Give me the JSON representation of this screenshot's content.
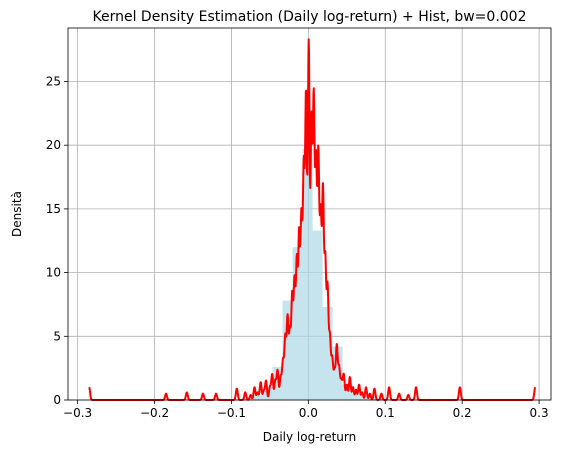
{
  "chart_data": {
    "type": "histogram+kde",
    "title": "Kernel Density Estimation (Daily log-return) + Hist, bw=0.002",
    "xlabel": "Daily log-return",
    "ylabel": "Densità",
    "xlim": [
      -0.3125,
      0.3155
    ],
    "ylim": [
      0,
      29.2
    ],
    "x_ticks": [
      -0.3,
      -0.2,
      -0.1,
      0.0,
      0.1,
      0.2,
      0.3
    ],
    "x_tick_labels": [
      "−0.3",
      "−0.2",
      "−0.1",
      "0.0",
      "0.1",
      "0.2",
      "0.3"
    ],
    "y_ticks": [
      0,
      5,
      10,
      15,
      20,
      25
    ],
    "y_tick_labels": [
      "0",
      "5",
      "10",
      "15",
      "20",
      "25"
    ],
    "grid": true,
    "histogram": {
      "color": "#add8e6",
      "alpha": 0.7,
      "bins": [
        {
          "x0": -0.0855,
          "x1": -0.0725,
          "value": 0.25
        },
        {
          "x0": -0.0725,
          "x1": -0.0595,
          "value": 0.35
        },
        {
          "x0": -0.0595,
          "x1": -0.0465,
          "value": 1.0
        },
        {
          "x0": -0.0465,
          "x1": -0.0335,
          "value": 2.6
        },
        {
          "x0": -0.0335,
          "x1": -0.0205,
          "value": 7.8
        },
        {
          "x0": -0.0205,
          "x1": -0.0075,
          "value": 12.0
        },
        {
          "x0": -0.0075,
          "x1": 0.0055,
          "value": 19.7
        },
        {
          "x0": 0.0055,
          "x1": 0.0185,
          "value": 13.3
        },
        {
          "x0": 0.0185,
          "x1": 0.0315,
          "value": 7.3
        },
        {
          "x0": 0.0315,
          "x1": 0.0445,
          "value": 4.2
        },
        {
          "x0": 0.0445,
          "x1": 0.0575,
          "value": 1.2
        },
        {
          "x0": 0.0575,
          "x1": 0.0705,
          "value": 0.5
        },
        {
          "x0": 0.0705,
          "x1": 0.0835,
          "value": 0.3
        },
        {
          "x0": 0.0835,
          "x1": 0.0965,
          "value": 0.35
        }
      ]
    },
    "kde": {
      "color": "#ff0000",
      "line_width": 2,
      "baseline_range": [
        -0.285,
        0.295
      ],
      "peaks": [
        [
          -0.285,
          1.0,
          0.0012
        ],
        [
          -0.185,
          0.5,
          0.0012
        ],
        [
          -0.158,
          0.6,
          0.0012
        ],
        [
          -0.137,
          0.5,
          0.0012
        ],
        [
          -0.12,
          0.5,
          0.0012
        ],
        [
          -0.093,
          0.9,
          0.0012
        ],
        [
          -0.082,
          0.6,
          0.0012
        ],
        [
          -0.075,
          0.4,
          0.0012
        ],
        [
          -0.07,
          1.0,
          0.0012
        ],
        [
          -0.066,
          0.6,
          0.0012
        ],
        [
          -0.062,
          1.4,
          0.0012
        ],
        [
          -0.058,
          0.7,
          0.0012
        ],
        [
          -0.055,
          1.5,
          0.0012
        ],
        [
          -0.05,
          1.0,
          0.0012
        ],
        [
          -0.047,
          2.0,
          0.0012
        ],
        [
          -0.043,
          1.5,
          0.0012
        ],
        [
          -0.04,
          2.3,
          0.0012
        ],
        [
          -0.036,
          1.8,
          0.0012
        ],
        [
          -0.033,
          3.0,
          0.0012
        ],
        [
          -0.03,
          4.8,
          0.0012
        ],
        [
          -0.027,
          6.3,
          0.0012
        ],
        [
          -0.024,
          5.2,
          0.0012
        ],
        [
          -0.021,
          8.0,
          0.0012
        ],
        [
          -0.018,
          9.0,
          0.0012
        ],
        [
          -0.015,
          10.5,
          0.0012
        ],
        [
          -0.012,
          12.5,
          0.0012
        ],
        [
          -0.009,
          13.8,
          0.0012
        ],
        [
          -0.006,
          17.5,
          0.0012
        ],
        [
          -0.003,
          23.3,
          0.0012
        ],
        [
          0.0005,
          27.7,
          0.0012
        ],
        [
          0.004,
          21.2,
          0.0012
        ],
        [
          0.007,
          22.8,
          0.0012
        ],
        [
          0.01,
          17.8,
          0.0012
        ],
        [
          0.013,
          18.6,
          0.0012
        ],
        [
          0.016,
          13.9,
          0.0012
        ],
        [
          0.019,
          16.0,
          0.0012
        ],
        [
          0.022,
          10.6,
          0.0012
        ],
        [
          0.025,
          8.6,
          0.0012
        ],
        [
          0.028,
          4.8,
          0.0012
        ],
        [
          0.031,
          3.2,
          0.0012
        ],
        [
          0.034,
          2.2,
          0.0012
        ],
        [
          0.037,
          4.2,
          0.0012
        ],
        [
          0.04,
          2.5,
          0.0012
        ],
        [
          0.043,
          1.5,
          0.0012
        ],
        [
          0.046,
          2.0,
          0.0012
        ],
        [
          0.05,
          1.2,
          0.0012
        ],
        [
          0.054,
          1.8,
          0.0012
        ],
        [
          0.058,
          1.0,
          0.0012
        ],
        [
          0.062,
          0.8,
          0.0012
        ],
        [
          0.066,
          1.2,
          0.0012
        ],
        [
          0.07,
          0.6,
          0.0012
        ],
        [
          0.075,
          1.0,
          0.0012
        ],
        [
          0.08,
          0.5,
          0.0012
        ],
        [
          0.086,
          0.9,
          0.0012
        ],
        [
          0.095,
          0.5,
          0.0012
        ],
        [
          0.105,
          1.0,
          0.0012
        ],
        [
          0.118,
          0.5,
          0.0012
        ],
        [
          0.13,
          0.4,
          0.0012
        ],
        [
          0.14,
          1.0,
          0.0012
        ],
        [
          0.197,
          1.0,
          0.0012
        ],
        [
          0.295,
          1.0,
          0.0012
        ]
      ]
    }
  }
}
